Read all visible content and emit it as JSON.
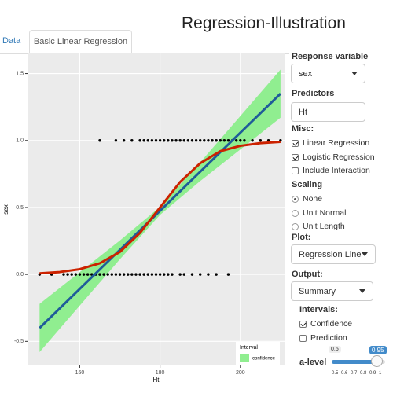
{
  "header": {
    "title": "Regression-Illustration"
  },
  "tabs": [
    "Data",
    "Basic Linear Regression"
  ],
  "active_tab": 1,
  "chart_data": {
    "type": "scatter",
    "x_label": "Ht",
    "y_label": "sex",
    "xlim": [
      147,
      211
    ],
    "ylim": [
      -0.68,
      1.65
    ],
    "xticks": [
      160,
      180,
      200
    ],
    "yticks": [
      {
        "value": -0.5,
        "label": "-0.5"
      },
      {
        "value": 0,
        "label": "0.0"
      },
      {
        "value": 0.5,
        "label": "0.5"
      },
      {
        "value": 1,
        "label": "1.0"
      },
      {
        "value": 1.5,
        "label": "1.5"
      }
    ],
    "grid": true,
    "points": {
      "color": "#000000",
      "x": [
        150,
        153,
        156,
        157,
        158,
        159,
        160,
        161,
        162,
        163,
        164,
        165,
        166,
        167,
        168,
        169,
        170,
        171,
        172,
        173,
        174,
        175,
        176,
        177,
        178,
        179,
        180,
        181,
        182,
        183,
        185,
        186,
        188,
        190,
        192,
        194,
        197,
        165,
        169,
        171,
        173,
        175,
        176,
        177,
        178,
        179,
        180,
        181,
        182,
        183,
        184,
        185,
        186,
        187,
        188,
        189,
        190,
        191,
        192,
        193,
        194,
        195,
        196,
        197,
        198,
        199,
        200,
        201,
        203,
        205,
        207,
        210
      ],
      "values": [
        0,
        0,
        0,
        0,
        0,
        0,
        0,
        0,
        0,
        0,
        0,
        0,
        0,
        0,
        0,
        0,
        0,
        0,
        0,
        0,
        0,
        0,
        0,
        0,
        0,
        0,
        0,
        0,
        0,
        0,
        0,
        0,
        0,
        0,
        0,
        0,
        0,
        1,
        1,
        1,
        1,
        1,
        1,
        1,
        1,
        1,
        1,
        1,
        1,
        1,
        1,
        1,
        1,
        1,
        1,
        1,
        1,
        1,
        1,
        1,
        1,
        1,
        1,
        1,
        1,
        1,
        1,
        1,
        1,
        1,
        1,
        1
      ]
    },
    "interval": {
      "name": "confidence",
      "color": "#90ee90",
      "x": [
        150,
        160,
        170,
        180,
        190,
        200,
        210
      ],
      "lower": [
        -0.58,
        -0.233,
        0.113,
        0.445,
        0.697,
        0.933,
        1.17
      ],
      "upper": [
        -0.22,
        0.017,
        0.253,
        0.505,
        0.837,
        1.183,
        1.53
      ]
    },
    "linear_fit": {
      "color": "#1f5c99",
      "x": [
        150,
        210
      ],
      "values": [
        -0.4,
        1.35
      ]
    },
    "logistic_fit": {
      "color": "#cc2200",
      "x": [
        150,
        155,
        160,
        165,
        170,
        175,
        180,
        185,
        190,
        195,
        200,
        205,
        210
      ],
      "values": [
        0.008,
        0.018,
        0.039,
        0.083,
        0.168,
        0.31,
        0.5,
        0.69,
        0.83,
        0.92,
        0.96,
        0.98,
        0.99
      ]
    },
    "legend": {
      "title": "Interval",
      "position": "bottom-right"
    }
  },
  "sidebar": {
    "response": {
      "label": "Response variable",
      "value": "sex"
    },
    "predictors": {
      "label": "Predictors",
      "value": "Ht"
    },
    "misc": {
      "label": "Misc:",
      "options": [
        {
          "label": "Linear Regression",
          "checked": true
        },
        {
          "label": "Logistic Regression",
          "checked": true
        },
        {
          "label": "Include Interaction",
          "checked": false
        }
      ]
    },
    "scaling": {
      "label": "Scaling",
      "options": [
        "None",
        "Unit Normal",
        "Unit Length"
      ],
      "selected": 0
    },
    "plot": {
      "label": "Plot:",
      "value": "Regression Line"
    },
    "output": {
      "label": "Output:",
      "value": "Summary"
    },
    "intervals": {
      "label": "Intervals:",
      "options": [
        {
          "label": "Confidence",
          "checked": true
        },
        {
          "label": "Prediction",
          "checked": false
        }
      ]
    },
    "alevel": {
      "label": "a-level",
      "min": 0.5,
      "max": 1,
      "value": 0.95,
      "ticks": [
        0.5,
        0.6,
        0.7,
        0.8,
        0.9,
        1
      ]
    }
  }
}
